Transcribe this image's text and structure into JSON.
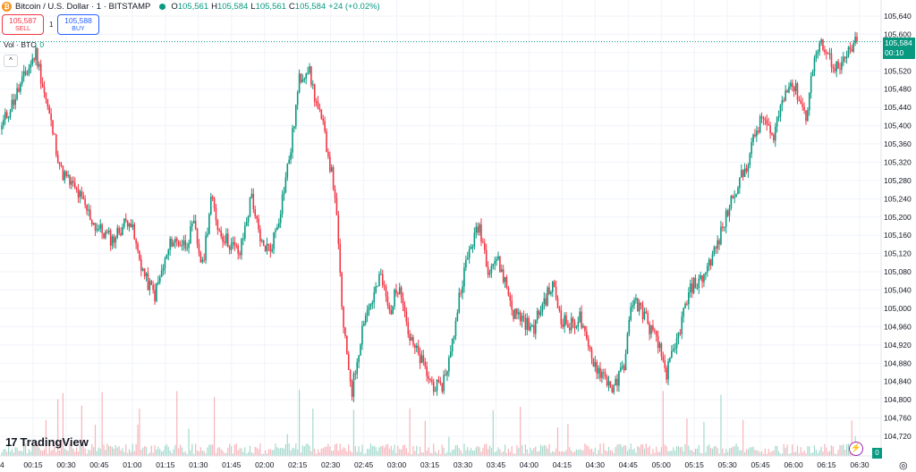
{
  "header": {
    "btc_glyph": "₿",
    "title": "Bitcoin / U.S. Dollar · 1 · BITSTAMP",
    "ohlc": [
      {
        "k": "O",
        "v": "105,561"
      },
      {
        "k": "H",
        "v": "105,584"
      },
      {
        "k": "L",
        "v": "105,561"
      },
      {
        "k": "C",
        "v": "105,584"
      }
    ],
    "change": "+24 (+0.02%)"
  },
  "trade": {
    "sell_price": "105,587",
    "sell_label": "SELL",
    "spread": "1",
    "buy_price": "105,588",
    "buy_label": "BUY"
  },
  "volume": {
    "label": "Vol · BTC",
    "value": "0"
  },
  "collapse_glyph": "^",
  "price_tag": {
    "price": "105,584",
    "timer": "00:10"
  },
  "brand": {
    "mark": "17",
    "name": "TradingView"
  },
  "flash_glyph": "⚡",
  "zero_tag": "0",
  "settings_glyph": "◎",
  "edge_label": "4",
  "colors": {
    "up": "#089981",
    "down": "#f23645",
    "up_vol": "#a3d9cc",
    "down_vol": "#f7b3ba",
    "grid": "#f0f3fa",
    "accent": "#089981"
  },
  "chart_data": {
    "type": "candlestick",
    "symbol": "Bitcoin / U.S. Dollar",
    "interval": "1",
    "exchange": "BITSTAMP",
    "x_ticks": [
      "00:15",
      "00:30",
      "00:45",
      "01:00",
      "01:15",
      "01:30",
      "01:45",
      "02:00",
      "02:15",
      "02:30",
      "02:45",
      "03:00",
      "03:15",
      "03:30",
      "03:45",
      "04:00",
      "04:15",
      "04:30",
      "04:45",
      "05:00",
      "05:15",
      "05:30",
      "05:45",
      "06:00",
      "06:15",
      "06:30"
    ],
    "y_ticks": [
      "105,640",
      "105,600",
      "105,560",
      "105,520",
      "105,480",
      "105,440",
      "105,400",
      "105,360",
      "105,320",
      "105,280",
      "105,240",
      "105,200",
      "105,160",
      "105,120",
      "105,080",
      "105,040",
      "105,000",
      "104,960",
      "104,920",
      "104,880",
      "104,840",
      "104,800",
      "104,760",
      "104,720"
    ],
    "ylim": [
      104720,
      105640
    ],
    "last_price": 105584,
    "close_series": [
      [
        0,
        105400
      ],
      [
        10,
        105480
      ],
      [
        20,
        105560
      ],
      [
        35,
        105300
      ],
      [
        45,
        105250
      ],
      [
        55,
        105180
      ],
      [
        65,
        105150
      ],
      [
        75,
        105200
      ],
      [
        80,
        105120
      ],
      [
        85,
        105060
      ],
      [
        90,
        105030
      ],
      [
        100,
        105150
      ],
      [
        108,
        105140
      ],
      [
        113,
        105180
      ],
      [
        118,
        105090
      ],
      [
        123,
        105240
      ],
      [
        128,
        105170
      ],
      [
        132,
        105150
      ],
      [
        140,
        105120
      ],
      [
        147,
        105250
      ],
      [
        152,
        105140
      ],
      [
        158,
        105130
      ],
      [
        163,
        105200
      ],
      [
        170,
        105350
      ],
      [
        175,
        105500
      ],
      [
        180,
        105530
      ],
      [
        185,
        105450
      ],
      [
        190,
        105380
      ],
      [
        196,
        105250
      ],
      [
        201,
        104950
      ],
      [
        206,
        104820
      ],
      [
        213,
        104980
      ],
      [
        218,
        105020
      ],
      [
        223,
        105070
      ],
      [
        228,
        104990
      ],
      [
        234,
        105060
      ],
      [
        240,
        104930
      ],
      [
        246,
        104890
      ],
      [
        252,
        104840
      ],
      [
        258,
        104820
      ],
      [
        264,
        104900
      ],
      [
        270,
        105050
      ],
      [
        276,
        105140
      ],
      [
        281,
        105180
      ],
      [
        286,
        105090
      ],
      [
        291,
        105110
      ],
      [
        296,
        105060
      ],
      [
        301,
        104990
      ],
      [
        306,
        104980
      ],
      [
        312,
        104950
      ],
      [
        318,
        105010
      ],
      [
        324,
        105050
      ],
      [
        329,
        104980
      ],
      [
        334,
        104960
      ],
      [
        340,
        104980
      ],
      [
        344,
        104920
      ],
      [
        350,
        104870
      ],
      [
        355,
        104850
      ],
      [
        360,
        104820
      ],
      [
        366,
        104880
      ],
      [
        371,
        105020
      ],
      [
        376,
        105000
      ],
      [
        381,
        104960
      ],
      [
        386,
        104920
      ],
      [
        391,
        104860
      ],
      [
        396,
        104910
      ],
      [
        401,
        104990
      ],
      [
        406,
        105050
      ],
      [
        411,
        105060
      ],
      [
        416,
        105100
      ],
      [
        421,
        105140
      ],
      [
        426,
        105200
      ],
      [
        431,
        105260
      ],
      [
        437,
        105300
      ],
      [
        443,
        105380
      ],
      [
        448,
        105420
      ],
      [
        453,
        105370
      ],
      [
        458,
        105440
      ],
      [
        463,
        105500
      ],
      [
        468,
        105470
      ],
      [
        473,
        105420
      ],
      [
        478,
        105550
      ],
      [
        483,
        105580
      ],
      [
        488,
        105540
      ],
      [
        493,
        105520
      ],
      [
        498,
        105560
      ],
      [
        503,
        105584
      ]
    ]
  }
}
